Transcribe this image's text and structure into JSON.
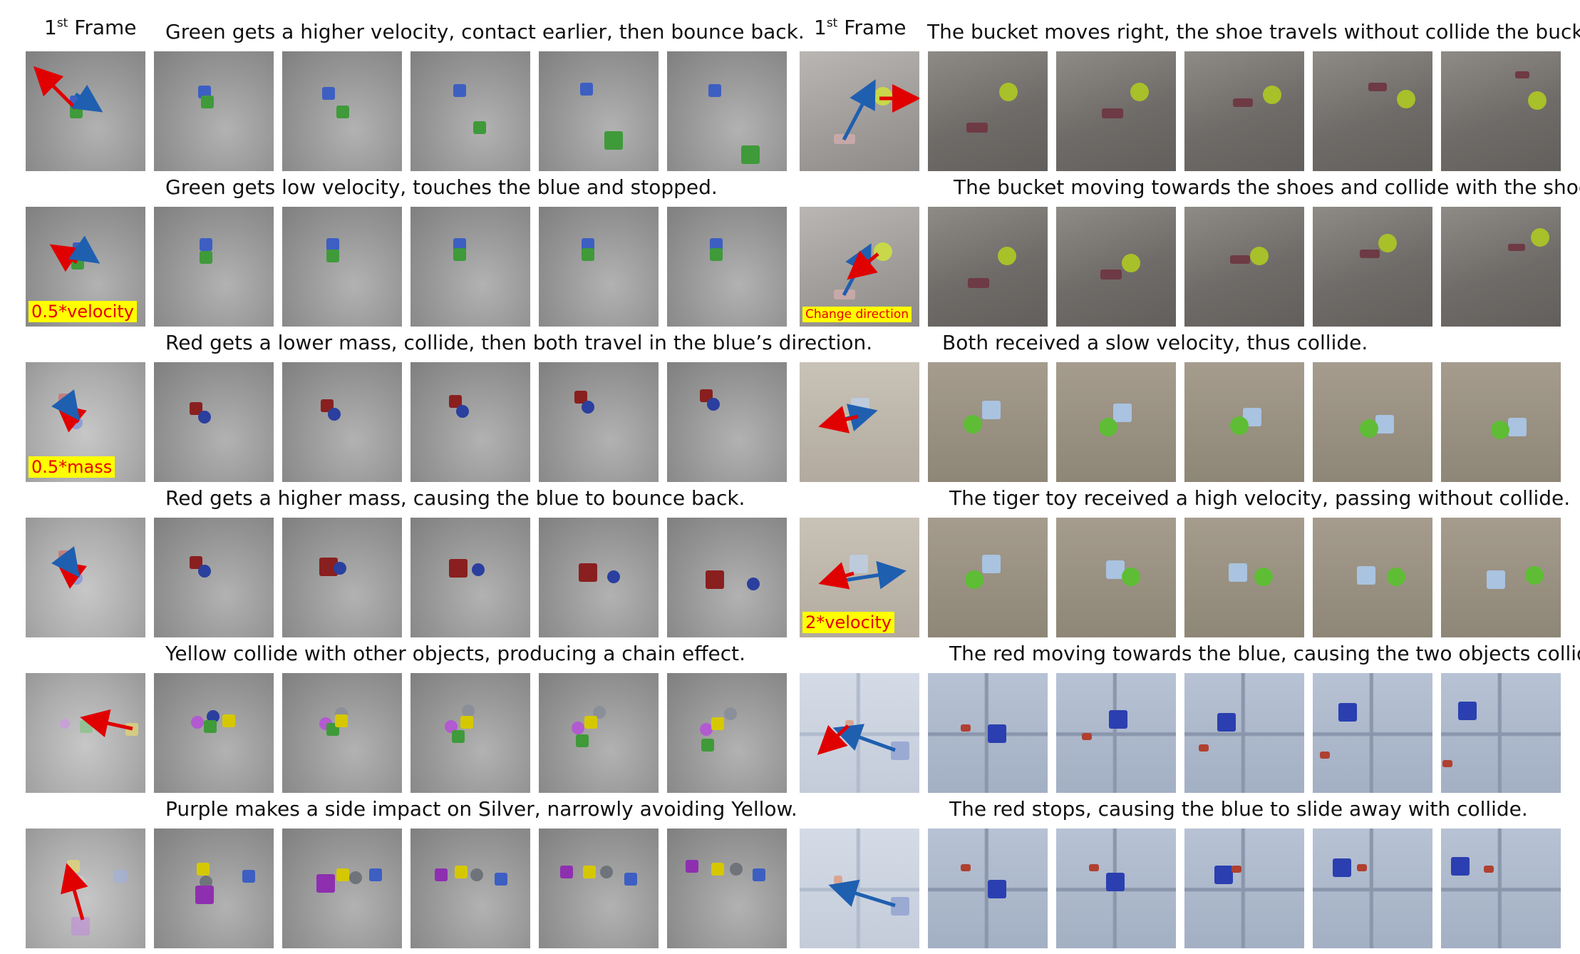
{
  "first_frame_label": "1",
  "first_frame_sup": "st",
  "first_frame_word": "Frame",
  "colors": {
    "arrow_red": "#e00000",
    "arrow_blue": "#1f5fb0",
    "tag_bg": "#ffff00",
    "tag_text": "#e60000"
  },
  "left_rows": [
    {
      "caption": "Green gets a higher velocity, contact earlier, then bounce back.",
      "tag": ""
    },
    {
      "caption": "Green gets low velocity, touches the blue and stopped.",
      "tag": "0.5*velocity"
    },
    {
      "caption": "Red gets a lower mass, collide, then both travel in the blue’s direction.",
      "tag": "0.5*mass"
    },
    {
      "caption": "Red gets a higher mass, causing the blue to bounce back.",
      "tag": ""
    },
    {
      "caption": "Yellow collide with other objects, producing a chain effect.",
      "tag": ""
    },
    {
      "caption": "Purple makes a side impact on Silver, narrowly avoiding Yellow.",
      "tag": ""
    }
  ],
  "right_rows": [
    {
      "caption": "The bucket moves right, the shoe travels without collide the bucket.",
      "tag": ""
    },
    {
      "caption": "The bucket moving towards the shoes and collide with the shoe.",
      "tag": "Change direction"
    },
    {
      "caption": "Both received a slow velocity, thus collide.",
      "tag": ""
    },
    {
      "caption": "The tiger toy received a high velocity, passing without collide.",
      "tag": "2*velocity"
    },
    {
      "caption": "The red moving towards the blue, causing the two objects collide.",
      "tag": ""
    },
    {
      "caption": "The red stops, causing the blue to slide away with collide.",
      "tag": ""
    }
  ]
}
